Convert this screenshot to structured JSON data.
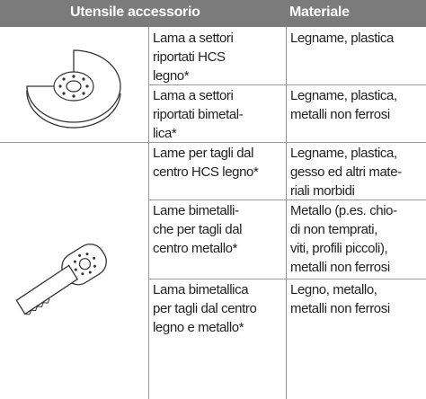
{
  "header": {
    "tool": "Utensile accessorio",
    "material": "Materiale"
  },
  "rows": [
    {
      "tool": [
        "Lama a settori",
        "riportati  HCS",
        "legno*"
      ],
      "material": [
        "Legname, plastica"
      ]
    },
    {
      "tool": [
        "Lama a settori",
        "riportati bimetal-",
        "lica*"
      ],
      "material": [
        "Legname, plastica,",
        "metalli non ferrosi"
      ]
    },
    {
      "tool": [
        "Lame per tagli dal",
        "centro HCS legno*"
      ],
      "material": [
        "Legname, plastica,",
        "gesso ed altri mate-",
        "riali morbidi"
      ]
    },
    {
      "tool": [
        "Lame bimetalli-",
        "che per tagli dal",
        "centro metallo*"
      ],
      "material": [
        "Metallo (p.es. chio-",
        "di non temprati,",
        "viti, profili piccoli),",
        "metalli non ferrosi"
      ]
    },
    {
      "tool": [
        "Lama bimetallica",
        "per tagli dal centro",
        "legno e metallo*"
      ],
      "material": [
        "Legno, metallo,",
        "metalli non ferrosi"
      ]
    }
  ]
}
